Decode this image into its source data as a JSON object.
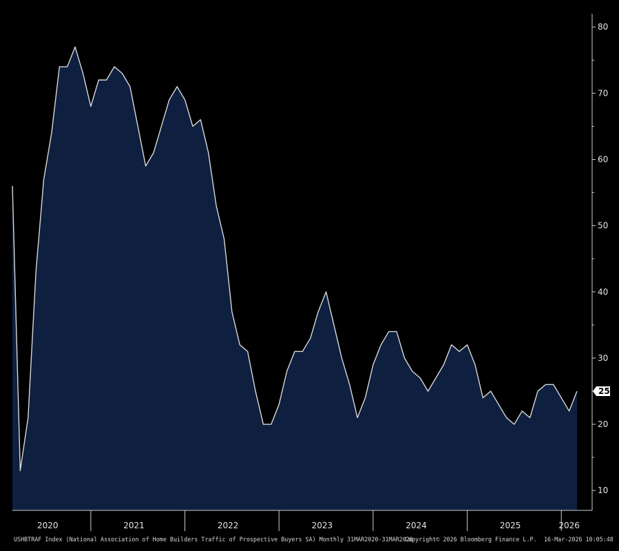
{
  "chart_data": {
    "type": "area",
    "ticker": "USHBTRAF Index",
    "description": "USHBTRAF Index (National Association of Home Builders Traffic of Prospective Buyers SA) Monthly 31MAR2020-31MAR2026",
    "copyright": "Copyright© 2026 Bloomberg Finance L.P.",
    "timestamp": "16-Mar-2026 10:05:48",
    "start": "2020-03",
    "values": [
      56,
      13,
      21,
      43,
      57,
      64,
      74,
      74,
      77,
      73,
      68,
      72,
      72,
      74,
      73,
      71,
      65,
      59,
      61,
      65,
      69,
      71,
      69,
      65,
      66,
      61,
      53,
      48,
      37,
      32,
      31,
      25,
      20,
      20,
      23,
      28,
      31,
      31,
      33,
      37,
      40,
      35,
      30,
      26,
      21,
      24,
      29,
      32,
      34,
      34,
      30,
      28,
      27,
      25,
      27,
      29,
      32,
      31,
      32,
      29,
      24,
      25,
      23,
      21,
      20,
      22,
      21,
      25,
      26,
      26,
      24,
      22,
      25
    ],
    "ylim": [
      7,
      82
    ],
    "yticks": [
      "10",
      "20",
      "30",
      "40",
      "50",
      "60",
      "70",
      "80"
    ],
    "last_value_label": "25",
    "x_year_labels": [
      "2020",
      "2021",
      "2022",
      "2023",
      "2024",
      "2025",
      "2026"
    ],
    "colors": {
      "background": "#000000",
      "area_fill": "#0f1f3f",
      "line": "#d9d9d9",
      "text": "#e6e6e6",
      "axis": "#cfcfcf"
    }
  }
}
